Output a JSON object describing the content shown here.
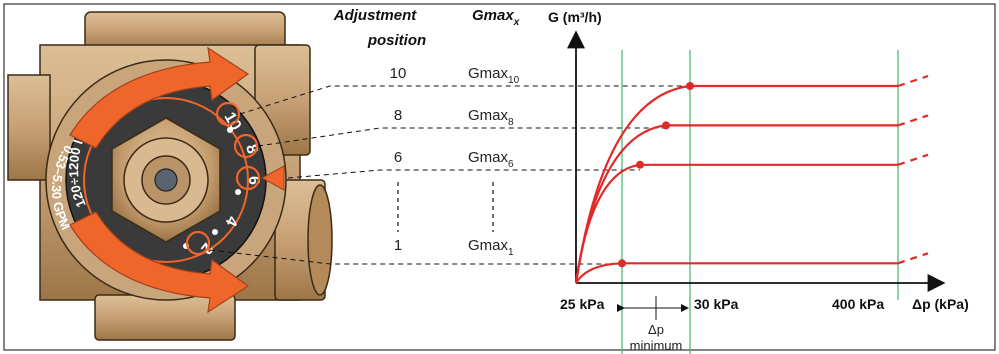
{
  "headers": {
    "adjustment_line1": "Adjustment",
    "adjustment_line2": "position",
    "gmax": "Gmax",
    "gmax_sub": "x"
  },
  "rows": [
    {
      "position": "10",
      "gmax": "Gmax",
      "sub": "10"
    },
    {
      "position": "8",
      "gmax": "Gmax",
      "sub": "8"
    },
    {
      "position": "6",
      "gmax": "Gmax",
      "sub": "6"
    },
    {
      "position": "1",
      "gmax": "Gmax",
      "sub": "1"
    }
  ],
  "valve": {
    "range_lh": "120÷1200 l/h",
    "range_gpm": "0.53–5.30 GPM",
    "dial_numbers": [
      "10",
      "8",
      "6",
      "4",
      "2"
    ],
    "colors": {
      "arrow": "#f0662a",
      "body": "#c9a57c",
      "dial": "#2a2a2a"
    }
  },
  "chart_data": {
    "type": "line",
    "ylabel": "G (m³/h)",
    "xlabel": "Δp (kPa)",
    "x_ticks": [
      "25 kPa",
      "30 kPa",
      "400 kPa"
    ],
    "annotation_line1": "Δp",
    "annotation_line2": "minimum",
    "series": [
      {
        "name": "Gmax10",
        "values": [
          0,
          10,
          10
        ]
      },
      {
        "name": "Gmax8",
        "values": [
          0,
          8,
          8
        ]
      },
      {
        "name": "Gmax6",
        "values": [
          0,
          6,
          6
        ]
      },
      {
        "name": "Gmax1",
        "values": [
          0,
          1,
          1
        ]
      }
    ],
    "colors": {
      "curve": "#e02a2a",
      "guide": "#3cb371"
    }
  }
}
